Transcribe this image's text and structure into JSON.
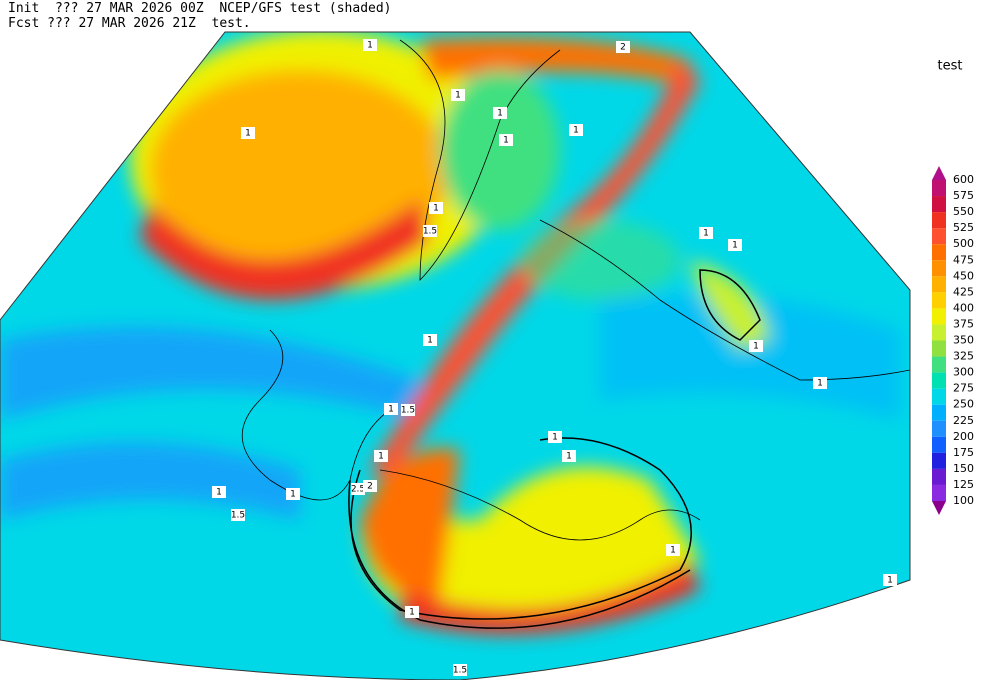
{
  "header": {
    "line1": "Init  ??? 27 MAR 2026 00Z  NCEP/GFS test (shaded)",
    "line2": "Fcst ??? 27 MAR 2026 21Z  test."
  },
  "legend": {
    "title": "test",
    "levels": [
      600,
      575,
      550,
      525,
      500,
      475,
      450,
      425,
      400,
      375,
      350,
      325,
      300,
      275,
      250,
      225,
      200,
      175,
      150,
      125,
      100
    ],
    "colors": [
      "#b0108a",
      "#c01070",
      "#d01040",
      "#f03020",
      "#ff5030",
      "#ff7000",
      "#ff9000",
      "#ffb000",
      "#ffd000",
      "#f0f000",
      "#c8f030",
      "#90e040",
      "#40e080",
      "#00e0b0",
      "#00d8e8",
      "#00b0ff",
      "#1e90ff",
      "#1060ff",
      "#2020e0",
      "#6a1ad0",
      "#8a2be2",
      "#8b008b"
    ]
  },
  "contour_labels": [
    "1",
    "2",
    "1",
    "1",
    "1",
    "1",
    "1",
    "1",
    "1.5",
    "1",
    "1",
    "1",
    "1",
    "1",
    "1.5",
    "1",
    "1",
    "1",
    "1",
    "2.5",
    "2",
    "1",
    "1",
    "1.5",
    "1",
    "1",
    "1",
    "1.5"
  ]
}
